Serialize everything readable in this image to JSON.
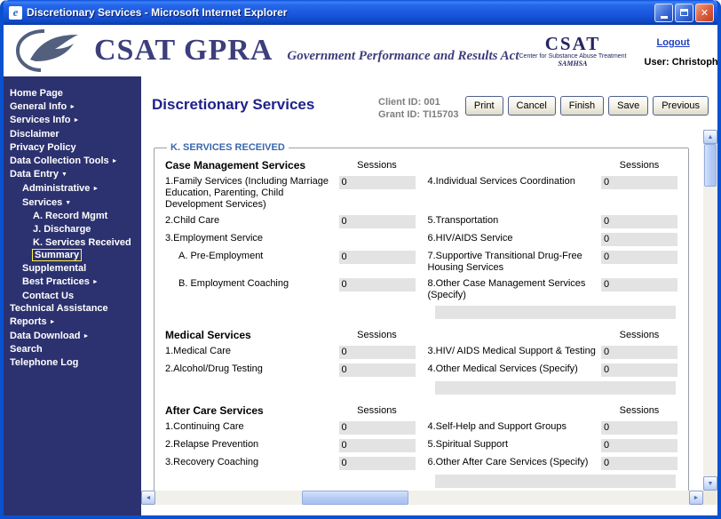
{
  "window": {
    "title": "Discretionary Services - Microsoft Internet Explorer"
  },
  "header": {
    "brand": "CSAT GPRA",
    "tagline": "Government Performance and Results Act",
    "csat_logo": {
      "title": "CSAT",
      "subtitle": "Center for Substance Abuse Treatment",
      "org": "SAMHSA"
    },
    "logout_label": "Logout",
    "user_label": "User: Christopher Shumway"
  },
  "sidebar": {
    "items": [
      {
        "label": "Home Page",
        "level": 0
      },
      {
        "label": "General Info",
        "level": 0,
        "arrow": "right"
      },
      {
        "label": "Services Info",
        "level": 0,
        "arrow": "right"
      },
      {
        "label": "Disclaimer",
        "level": 0
      },
      {
        "label": "Privacy Policy",
        "level": 0
      },
      {
        "label": "Data Collection Tools",
        "level": 0,
        "arrow": "right"
      },
      {
        "label": "Data Entry",
        "level": 0,
        "arrow": "down"
      },
      {
        "label": "Administrative",
        "level": 1,
        "arrow": "right"
      },
      {
        "label": "Services",
        "level": 1,
        "arrow": "down"
      },
      {
        "label": "A. Record Mgmt",
        "level": 2
      },
      {
        "label": "J. Discharge",
        "level": 2
      },
      {
        "label": "K. Services Received",
        "level": 2
      },
      {
        "label": "Summary",
        "level": 2,
        "selected": true
      },
      {
        "label": "Supplemental",
        "level": 1
      },
      {
        "label": "Best Practices",
        "level": 1,
        "arrow": "right"
      },
      {
        "label": "Contact Us",
        "level": 1
      },
      {
        "label": "Technical Assistance",
        "level": 0
      },
      {
        "label": "Reports",
        "level": 0,
        "arrow": "right"
      },
      {
        "label": "Data Download",
        "level": 0,
        "arrow": "right"
      },
      {
        "label": "Search",
        "level": 0
      },
      {
        "label": "Telephone Log",
        "level": 0
      }
    ]
  },
  "main": {
    "page_title": "Discretionary Services",
    "client_id": "Client ID: 001",
    "grant_id": "Grant ID: TI15703",
    "buttons": [
      "Print",
      "Cancel",
      "Finish",
      "Save",
      "Previous"
    ],
    "form": {
      "legend": "K. SERVICES RECEIVED",
      "sessions_header": "Sessions",
      "groups": [
        {
          "heading": "Case Management Services",
          "rows": [
            {
              "left": {
                "label": "1.Family Services (Including Marriage Education, Parenting, Child Development Services)",
                "value": "0"
              },
              "right": {
                "label": "4.Individual Services Coordination",
                "value": "0"
              }
            },
            {
              "left": {
                "label": "2.Child Care",
                "value": "0"
              },
              "right": {
                "label": "5.Transportation",
                "value": "0"
              }
            },
            {
              "left": {
                "label": "3.Employment Service"
              },
              "right": {
                "label": "6.HIV/AIDS Service",
                "value": "0"
              }
            },
            {
              "left": {
                "label": "A. Pre-Employment",
                "value": "0",
                "indent": true
              },
              "right": {
                "label": "7.Supportive Transitional Drug-Free Housing Services",
                "value": "0"
              }
            },
            {
              "left": {
                "label": "B. Employment Coaching",
                "value": "0",
                "indent": true
              },
              "right": {
                "label": "8.Other Case Management Services (Specify)",
                "value": "0"
              }
            },
            {
              "left": null,
              "right": {
                "specify": ""
              }
            }
          ]
        },
        {
          "heading": "Medical Services",
          "rows": [
            {
              "left": {
                "label": "1.Medical Care",
                "value": "0"
              },
              "right": {
                "label": "3.HIV/ AIDS Medical Support & Testing",
                "value": "0"
              }
            },
            {
              "left": {
                "label": "2.Alcohol/Drug Testing",
                "value": "0"
              },
              "right": {
                "label": "4.Other Medical Services (Specify)",
                "value": "0"
              }
            },
            {
              "left": null,
              "right": {
                "specify": ""
              }
            }
          ]
        },
        {
          "heading": "After Care Services",
          "rows": [
            {
              "left": {
                "label": "1.Continuing Care",
                "value": "0"
              },
              "right": {
                "label": "4.Self-Help and Support Groups",
                "value": "0"
              }
            },
            {
              "left": {
                "label": "2.Relapse Prevention",
                "value": "0"
              },
              "right": {
                "label": "5.Spiritual Support",
                "value": "0"
              }
            },
            {
              "left": {
                "label": "3.Recovery Coaching",
                "value": "0"
              },
              "right": {
                "label": "6.Other After Care Services (Specify)",
                "value": "0"
              }
            },
            {
              "left": null,
              "right": {
                "specify": ""
              }
            }
          ]
        }
      ]
    }
  }
}
